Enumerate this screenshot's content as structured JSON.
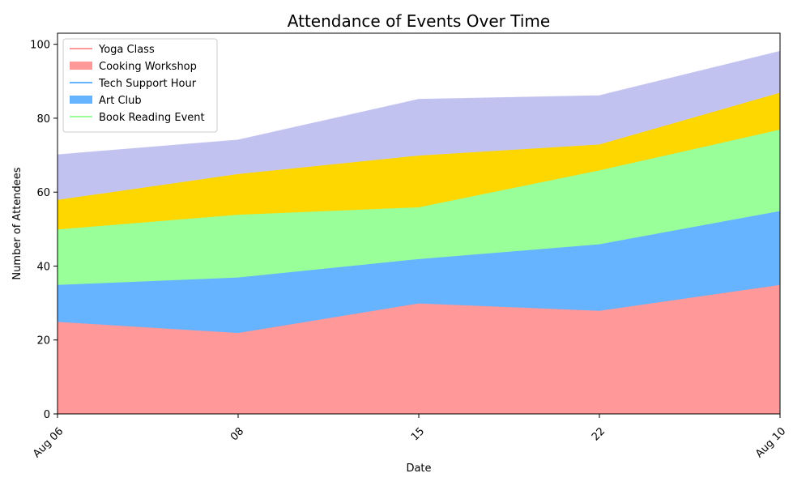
{
  "chart_data": {
    "type": "area",
    "title": "Attendance of Events Over Time",
    "xlabel": "Date",
    "ylabel": "Number of Attendees",
    "x_ticks": [
      "Aug 06",
      "08",
      "15",
      "22",
      "Aug 10"
    ],
    "ylim": [
      0,
      103
    ],
    "y_ticks": [
      0,
      20,
      40,
      60,
      80,
      100
    ],
    "stacked": true,
    "grid": false,
    "legend_position": "top-left",
    "series": [
      {
        "name": "Yoga Class",
        "color": "#ff9999",
        "legend": "line",
        "values": [
          25,
          22,
          30,
          28,
          35
        ]
      },
      {
        "name": "Cooking Workshop",
        "color": "#ff9999",
        "legend": "patch",
        "values": [
          0,
          0,
          0,
          0,
          0
        ]
      },
      {
        "name": "Tech Support Hour",
        "color": "#66b3ff",
        "legend": "line",
        "values": [
          10,
          15,
          12,
          18,
          20
        ]
      },
      {
        "name": "Art Club",
        "color": "#66b3ff",
        "legend": "patch",
        "values": [
          0,
          0,
          0,
          0,
          0
        ]
      },
      {
        "name": "Book Reading Event",
        "color": "#99ff99",
        "legend": "line",
        "values": [
          15,
          17,
          14,
          20,
          22
        ]
      },
      {
        "name": "",
        "color": "#ffd700",
        "legend": "none",
        "values": [
          8,
          11,
          14,
          7,
          10
        ]
      },
      {
        "name": "",
        "color": "#c2c2f0",
        "legend": "none",
        "values": [
          12,
          9,
          15,
          13,
          11
        ]
      }
    ]
  }
}
